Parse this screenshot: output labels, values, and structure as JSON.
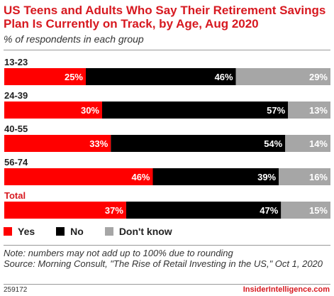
{
  "header": {
    "title": "US Teens and Adults Who Say Their Retirement Savings Plan Is Currently on Track, by Age, Aug 2020",
    "subtitle": "% of respondents in each group"
  },
  "chart_data": {
    "type": "bar",
    "stacked": true,
    "orientation": "horizontal",
    "categories": [
      "13-23",
      "24-39",
      "40-55",
      "56-74",
      "Total"
    ],
    "series": [
      {
        "name": "Yes",
        "color": "#ff0000",
        "values": [
          25,
          30,
          33,
          46,
          37
        ]
      },
      {
        "name": "No",
        "color": "#000000",
        "values": [
          46,
          57,
          54,
          39,
          47
        ]
      },
      {
        "name": "Don't know",
        "color": "#a6a6a6",
        "values": [
          29,
          13,
          14,
          16,
          15
        ]
      }
    ],
    "value_suffix": "%",
    "category_colors": {
      "Total": "#d71920"
    },
    "legend_position": "bottom-left"
  },
  "legend": {
    "items": [
      {
        "label": "Yes",
        "color": "#ff0000"
      },
      {
        "label": "No",
        "color": "#000000"
      },
      {
        "label": "Don't know",
        "color": "#a6a6a6"
      }
    ]
  },
  "footer": {
    "note": "Note: numbers may not add up to 100% due to rounding",
    "source": "Source: Morning Consult, \"The Rise of Retail Investing in the US,\" Oct 1, 2020",
    "chart_id": "259172",
    "brand": "InsiderIntelligence.com"
  }
}
